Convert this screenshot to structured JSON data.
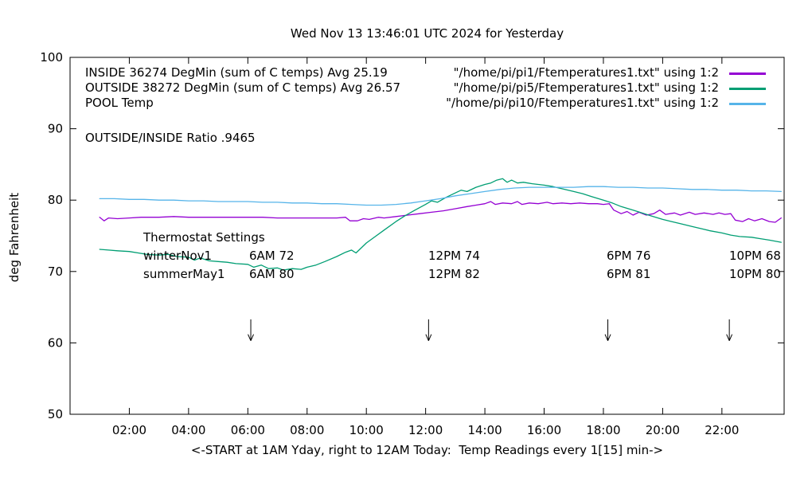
{
  "chart_data": {
    "type": "line",
    "title": "Wed Nov 13 13:46:01 UTC 2024 for Yesterday",
    "xlabel": "<-START at 1AM Yday, right to 12AM Today:  Temp Readings every 1[15] min->",
    "ylabel": "deg Fahrenheit",
    "xlim": [
      0,
      24.1
    ],
    "ylim": [
      50,
      100
    ],
    "grid": false,
    "legend_position": "top",
    "x_ticks": [
      {
        "value": 2,
        "label": "02:00"
      },
      {
        "value": 4,
        "label": "04:00"
      },
      {
        "value": 6,
        "label": "06:00"
      },
      {
        "value": 8,
        "label": "08:00"
      },
      {
        "value": 10,
        "label": "10:00"
      },
      {
        "value": 12,
        "label": "12:00"
      },
      {
        "value": 14,
        "label": "14:00"
      },
      {
        "value": 16,
        "label": "16:00"
      },
      {
        "value": 18,
        "label": "18:00"
      },
      {
        "value": 20,
        "label": "20:00"
      },
      {
        "value": 22,
        "label": "22:00"
      }
    ],
    "y_ticks": [
      {
        "value": 50,
        "label": "50"
      },
      {
        "value": 60,
        "label": "60"
      },
      {
        "value": 70,
        "label": "70"
      },
      {
        "value": 80,
        "label": "80"
      },
      {
        "value": 90,
        "label": "90"
      },
      {
        "value": 100,
        "label": "100"
      }
    ],
    "series": [
      {
        "id": "inside",
        "name": "INSIDE 36274 DegMin (sum of C temps) Avg 25.19",
        "file": "\"/home/pi/pi1/Ftemperatures1.txt\" using 1:2",
        "color": "#9400d3",
        "points": [
          [
            1.0,
            77.6
          ],
          [
            1.15,
            77.1
          ],
          [
            1.3,
            77.5
          ],
          [
            1.6,
            77.4
          ],
          [
            2.0,
            77.5
          ],
          [
            2.4,
            77.6
          ],
          [
            3.0,
            77.6
          ],
          [
            3.5,
            77.7
          ],
          [
            4.0,
            77.6
          ],
          [
            4.5,
            77.6
          ],
          [
            5.0,
            77.6
          ],
          [
            5.5,
            77.6
          ],
          [
            6.0,
            77.6
          ],
          [
            6.5,
            77.6
          ],
          [
            7.0,
            77.5
          ],
          [
            7.5,
            77.5
          ],
          [
            8.0,
            77.5
          ],
          [
            8.5,
            77.5
          ],
          [
            9.0,
            77.5
          ],
          [
            9.3,
            77.6
          ],
          [
            9.45,
            77.1
          ],
          [
            9.7,
            77.1
          ],
          [
            9.9,
            77.4
          ],
          [
            10.1,
            77.3
          ],
          [
            10.4,
            77.6
          ],
          [
            10.6,
            77.5
          ],
          [
            11.0,
            77.7
          ],
          [
            11.4,
            77.9
          ],
          [
            11.8,
            78.1
          ],
          [
            12.2,
            78.3
          ],
          [
            12.6,
            78.5
          ],
          [
            13.0,
            78.8
          ],
          [
            13.4,
            79.1
          ],
          [
            13.7,
            79.3
          ],
          [
            14.0,
            79.5
          ],
          [
            14.2,
            79.8
          ],
          [
            14.35,
            79.4
          ],
          [
            14.6,
            79.6
          ],
          [
            14.9,
            79.5
          ],
          [
            15.1,
            79.8
          ],
          [
            15.25,
            79.4
          ],
          [
            15.5,
            79.6
          ],
          [
            15.8,
            79.5
          ],
          [
            16.1,
            79.7
          ],
          [
            16.3,
            79.5
          ],
          [
            16.6,
            79.6
          ],
          [
            16.9,
            79.5
          ],
          [
            17.2,
            79.6
          ],
          [
            17.5,
            79.5
          ],
          [
            17.8,
            79.5
          ],
          [
            18.0,
            79.4
          ],
          [
            18.2,
            79.5
          ],
          [
            18.35,
            78.6
          ],
          [
            18.6,
            78.1
          ],
          [
            18.8,
            78.4
          ],
          [
            19.0,
            77.9
          ],
          [
            19.2,
            78.3
          ],
          [
            19.45,
            77.9
          ],
          [
            19.7,
            78.1
          ],
          [
            19.9,
            78.6
          ],
          [
            20.1,
            78.0
          ],
          [
            20.4,
            78.2
          ],
          [
            20.6,
            77.9
          ],
          [
            20.9,
            78.3
          ],
          [
            21.1,
            78.0
          ],
          [
            21.4,
            78.2
          ],
          [
            21.7,
            78.0
          ],
          [
            21.9,
            78.2
          ],
          [
            22.1,
            78.0
          ],
          [
            22.3,
            78.1
          ],
          [
            22.45,
            77.2
          ],
          [
            22.7,
            77.0
          ],
          [
            22.9,
            77.4
          ],
          [
            23.1,
            77.1
          ],
          [
            23.35,
            77.4
          ],
          [
            23.6,
            77.0
          ],
          [
            23.8,
            76.9
          ],
          [
            24.0,
            77.5
          ]
        ]
      },
      {
        "id": "outside",
        "name": "OUTSIDE 38272 DegMin (sum of C temps) Avg 26.57",
        "file": "\"/home/pi/pi5/Ftemperatures1.txt\" using 1:2",
        "color": "#009e73",
        "points": [
          [
            1.0,
            73.1
          ],
          [
            1.3,
            73.0
          ],
          [
            1.6,
            72.9
          ],
          [
            2.0,
            72.8
          ],
          [
            2.3,
            72.6
          ],
          [
            2.6,
            72.4
          ],
          [
            3.0,
            72.3
          ],
          [
            3.3,
            72.4
          ],
          [
            3.6,
            72.1
          ],
          [
            4.0,
            72.0
          ],
          [
            4.2,
            71.6
          ],
          [
            4.4,
            71.9
          ],
          [
            4.7,
            71.5
          ],
          [
            5.0,
            71.4
          ],
          [
            5.3,
            71.3
          ],
          [
            5.6,
            71.1
          ],
          [
            6.0,
            71.0
          ],
          [
            6.2,
            70.6
          ],
          [
            6.45,
            70.9
          ],
          [
            6.7,
            70.4
          ],
          [
            7.0,
            70.5
          ],
          [
            7.2,
            70.2
          ],
          [
            7.5,
            70.4
          ],
          [
            7.8,
            70.3
          ],
          [
            8.0,
            70.6
          ],
          [
            8.3,
            70.9
          ],
          [
            8.6,
            71.4
          ],
          [
            9.0,
            72.1
          ],
          [
            9.3,
            72.7
          ],
          [
            9.5,
            73.0
          ],
          [
            9.65,
            72.6
          ],
          [
            9.8,
            73.2
          ],
          [
            10.0,
            74.0
          ],
          [
            10.3,
            74.9
          ],
          [
            10.6,
            75.8
          ],
          [
            11.0,
            77.0
          ],
          [
            11.3,
            77.8
          ],
          [
            11.6,
            78.5
          ],
          [
            12.0,
            79.4
          ],
          [
            12.2,
            79.9
          ],
          [
            12.4,
            79.7
          ],
          [
            12.7,
            80.4
          ],
          [
            13.0,
            81.0
          ],
          [
            13.2,
            81.4
          ],
          [
            13.4,
            81.2
          ],
          [
            13.7,
            81.8
          ],
          [
            14.0,
            82.2
          ],
          [
            14.2,
            82.4
          ],
          [
            14.4,
            82.8
          ],
          [
            14.6,
            83.0
          ],
          [
            14.75,
            82.5
          ],
          [
            14.9,
            82.8
          ],
          [
            15.1,
            82.4
          ],
          [
            15.3,
            82.5
          ],
          [
            15.6,
            82.3
          ],
          [
            16.0,
            82.1
          ],
          [
            16.3,
            81.9
          ],
          [
            16.6,
            81.6
          ],
          [
            17.0,
            81.2
          ],
          [
            17.3,
            80.9
          ],
          [
            17.6,
            80.5
          ],
          [
            18.0,
            80.0
          ],
          [
            18.3,
            79.6
          ],
          [
            18.6,
            79.1
          ],
          [
            19.0,
            78.6
          ],
          [
            19.3,
            78.2
          ],
          [
            19.6,
            77.8
          ],
          [
            20.0,
            77.3
          ],
          [
            20.3,
            77.0
          ],
          [
            20.6,
            76.7
          ],
          [
            21.0,
            76.3
          ],
          [
            21.3,
            76.0
          ],
          [
            21.6,
            75.7
          ],
          [
            22.0,
            75.4
          ],
          [
            22.3,
            75.1
          ],
          [
            22.6,
            74.9
          ],
          [
            23.0,
            74.8
          ],
          [
            23.3,
            74.6
          ],
          [
            23.6,
            74.4
          ],
          [
            24.0,
            74.1
          ]
        ]
      },
      {
        "id": "pool",
        "name": "POOL Temp",
        "file": "\"/home/pi/pi10/Ftemperatures1.txt\" using 1:2",
        "color": "#56b4e9",
        "points": [
          [
            1.0,
            80.2
          ],
          [
            1.5,
            80.2
          ],
          [
            2.0,
            80.1
          ],
          [
            2.5,
            80.1
          ],
          [
            3.0,
            80.0
          ],
          [
            3.5,
            80.0
          ],
          [
            4.0,
            79.9
          ],
          [
            4.5,
            79.9
          ],
          [
            5.0,
            79.8
          ],
          [
            5.5,
            79.8
          ],
          [
            6.0,
            79.8
          ],
          [
            6.5,
            79.7
          ],
          [
            7.0,
            79.7
          ],
          [
            7.5,
            79.6
          ],
          [
            8.0,
            79.6
          ],
          [
            8.5,
            79.5
          ],
          [
            9.0,
            79.5
          ],
          [
            9.5,
            79.4
          ],
          [
            10.0,
            79.3
          ],
          [
            10.5,
            79.3
          ],
          [
            11.0,
            79.4
          ],
          [
            11.5,
            79.6
          ],
          [
            12.0,
            79.9
          ],
          [
            12.5,
            80.2
          ],
          [
            13.0,
            80.6
          ],
          [
            13.5,
            80.9
          ],
          [
            14.0,
            81.2
          ],
          [
            14.5,
            81.5
          ],
          [
            15.0,
            81.7
          ],
          [
            15.5,
            81.8
          ],
          [
            16.0,
            81.8
          ],
          [
            16.5,
            81.8
          ],
          [
            17.0,
            81.8
          ],
          [
            17.5,
            81.9
          ],
          [
            18.0,
            81.9
          ],
          [
            18.5,
            81.8
          ],
          [
            19.0,
            81.8
          ],
          [
            19.5,
            81.7
          ],
          [
            20.0,
            81.7
          ],
          [
            20.5,
            81.6
          ],
          [
            21.0,
            81.5
          ],
          [
            21.5,
            81.5
          ],
          [
            22.0,
            81.4
          ],
          [
            22.5,
            81.4
          ],
          [
            23.0,
            81.3
          ],
          [
            23.5,
            81.3
          ],
          [
            24.0,
            81.2
          ]
        ]
      }
    ],
    "arrows": {
      "hours": [
        6.1,
        12.1,
        18.15,
        22.25
      ],
      "from_f": 63.3,
      "to_f": 60.3
    },
    "annotations": {
      "ratio_text": "OUTSIDE/INSIDE Ratio .9465",
      "thermostat": {
        "heading": "Thermostat Settings",
        "rows": [
          [
            "winterNov1",
            "6AM 72",
            "12PM 74",
            "6PM 76",
            "10PM 68"
          ],
          [
            "summerMay1",
            "6AM 80",
            "12PM 82",
            "6PM 81",
            "10PM 80"
          ]
        ]
      }
    }
  }
}
